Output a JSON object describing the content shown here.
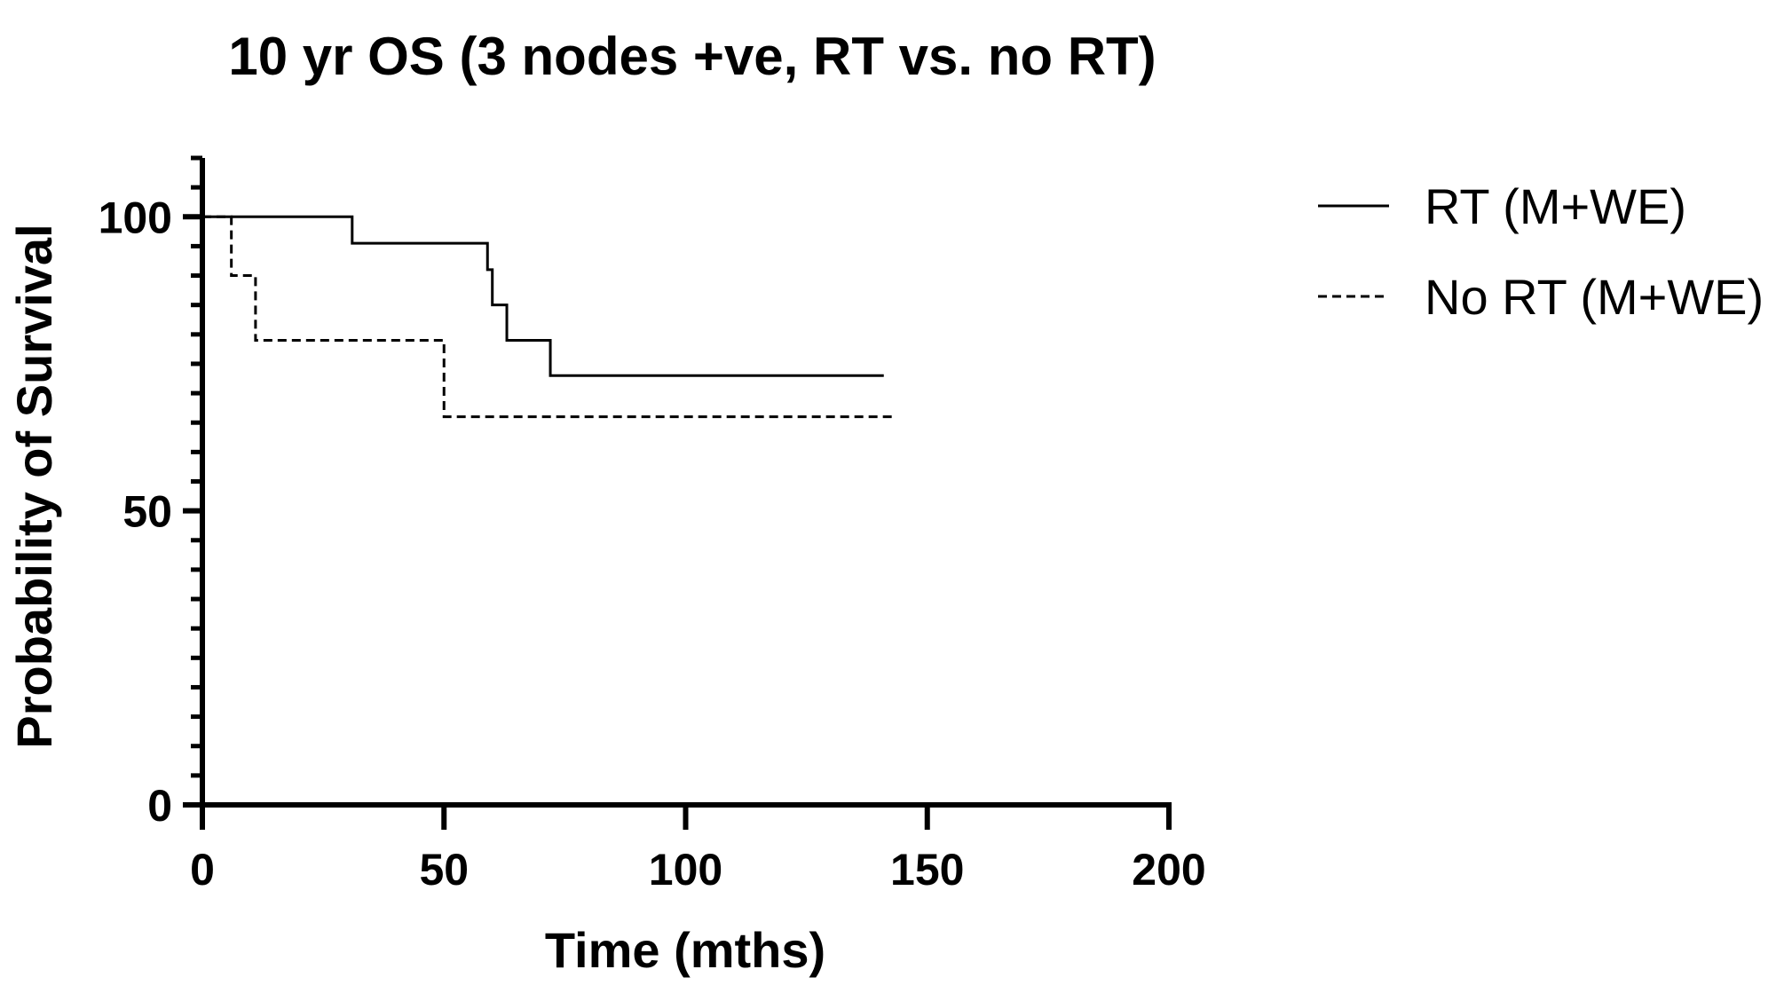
{
  "chart_data": {
    "type": "line",
    "title": "10 yr OS (3 nodes +ve, RT vs. no RT)",
    "xlabel": "Time (mths)",
    "ylabel": "Probability of Survival",
    "xlim": [
      0,
      200
    ],
    "ylim": [
      0,
      110
    ],
    "x_ticks": [
      0,
      50,
      100,
      150,
      200
    ],
    "y_ticks": [
      0,
      50,
      100
    ],
    "x_tick_labels": [
      "0",
      "50",
      "100",
      "150",
      "200"
    ],
    "y_tick_labels": [
      "0",
      "50",
      "100"
    ],
    "grid": false,
    "legend_position": "top-right",
    "series": [
      {
        "name": "RT (M+WE)",
        "line_style": "solid",
        "color": "#000000",
        "steps": [
          [
            0,
            100
          ],
          [
            31,
            95.5
          ],
          [
            59,
            91
          ],
          [
            60,
            85
          ],
          [
            63,
            79
          ],
          [
            72,
            73
          ]
        ],
        "end_x": 141
      },
      {
        "name": "No RT (M+WE)",
        "line_style": "dashed",
        "color": "#000000",
        "steps": [
          [
            0,
            100
          ],
          [
            6,
            90
          ],
          [
            11,
            79
          ],
          [
            50,
            66
          ]
        ],
        "end_x": 143
      }
    ]
  }
}
